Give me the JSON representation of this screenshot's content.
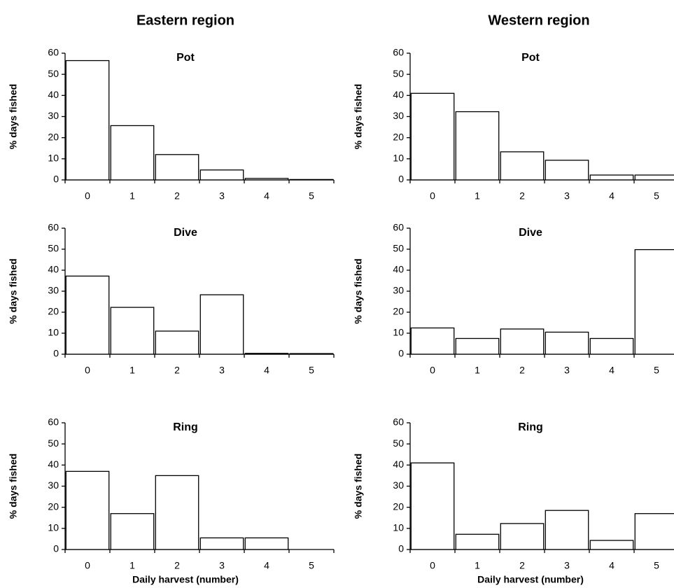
{
  "column_titles": [
    "Eastern region",
    "Western region"
  ],
  "chart_data": [
    {
      "type": "bar",
      "title": "Pot",
      "ylabel": "% days fished",
      "categories": [
        "0",
        "1",
        "2",
        "3",
        "4",
        "5"
      ],
      "values": [
        56.5,
        25.7,
        12,
        4.7,
        0.7,
        0.2
      ],
      "color": "#ffffff",
      "edgecolor": "#000000",
      "ylim": [
        0,
        60
      ],
      "yticks": [
        0,
        10,
        20,
        30,
        40,
        50,
        60
      ]
    },
    {
      "type": "bar",
      "title": "Dive",
      "ylabel": "% days fished",
      "categories": [
        "0",
        "1",
        "2",
        "3",
        "4",
        "5"
      ],
      "values": [
        37.2,
        22.3,
        11,
        28.3,
        0.4,
        0.3
      ],
      "color": "#ffffff",
      "edgecolor": "#000000",
      "ylim": [
        0,
        60
      ],
      "yticks": [
        0,
        10,
        20,
        30,
        40,
        50,
        60
      ]
    },
    {
      "type": "bar",
      "title": "Ring",
      "ylabel": "% days fished",
      "xlabel": "Daily harvest (number)",
      "categories": [
        "0",
        "1",
        "2",
        "3",
        "4",
        "5"
      ],
      "values": [
        37,
        17,
        35,
        5.5,
        5.5,
        0
      ],
      "color": "#ffffff",
      "edgecolor": "#000000",
      "ylim": [
        0,
        60
      ],
      "yticks": [
        0,
        10,
        20,
        30,
        40,
        50,
        60
      ]
    },
    {
      "type": "bar",
      "title": "Pot",
      "ylabel": "% days fished",
      "categories": [
        "0",
        "1",
        "2",
        "3",
        "4",
        "5"
      ],
      "values": [
        41,
        32.3,
        13.3,
        9.3,
        2.3,
        2.3
      ],
      "color": "#ffffff",
      "edgecolor": "#000000",
      "ylim": [
        0,
        60
      ],
      "yticks": [
        0,
        10,
        20,
        30,
        40,
        50,
        60
      ]
    },
    {
      "type": "bar",
      "title": "Dive",
      "ylabel": "% days fished",
      "categories": [
        "0",
        "1",
        "2",
        "3",
        "4",
        "5"
      ],
      "values": [
        12.5,
        7.5,
        12,
        10.5,
        7.5,
        49.8
      ],
      "color": "#ffffff",
      "edgecolor": "#000000",
      "ylim": [
        0,
        60
      ],
      "yticks": [
        0,
        10,
        20,
        30,
        40,
        50,
        60
      ]
    },
    {
      "type": "bar",
      "title": "Ring",
      "ylabel": "% days fished",
      "xlabel": "Daily harvest (number)",
      "categories": [
        "0",
        "1",
        "2",
        "3",
        "4",
        "5"
      ],
      "values": [
        41,
        7.2,
        12.3,
        18.5,
        4.3,
        17
      ],
      "color": "#ffffff",
      "edgecolor": "#000000",
      "ylim": [
        0,
        60
      ],
      "yticks": [
        0,
        10,
        20,
        30,
        40,
        50,
        60
      ]
    }
  ]
}
